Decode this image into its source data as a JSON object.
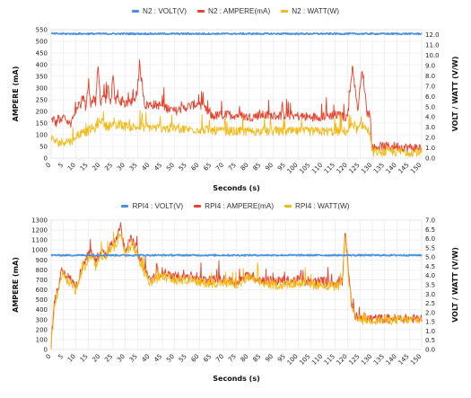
{
  "chart_data": [
    {
      "type": "line",
      "xlabel": "Seconds (s)",
      "ylabel_left": "AMPERE (mA)",
      "ylabel_right": "VOLT / WATT (V/W)",
      "xlim": [
        0,
        150
      ],
      "ylim_left": [
        0,
        550
      ],
      "ylim_right": [
        0,
        12.5
      ],
      "x_ticks": [
        0,
        5,
        10,
        15,
        20,
        25,
        30,
        35,
        40,
        45,
        50,
        55,
        60,
        65,
        70,
        75,
        80,
        85,
        90,
        95,
        100,
        105,
        110,
        115,
        120,
        125,
        130,
        135,
        140,
        145,
        150
      ],
      "y_ticks_left": [
        0,
        50,
        100,
        150,
        200,
        250,
        300,
        350,
        400,
        450,
        500,
        550
      ],
      "y_ticks_right": [
        "0.0",
        "1.0",
        "2.0",
        "3.0",
        "4.0",
        "5.0",
        "6.0",
        "7.0",
        "8.0",
        "9.0",
        "10.0",
        "11.0",
        "12.0"
      ],
      "legend_position": "top",
      "grid": true,
      "series": [
        {
          "name": "N2 : VOLT(V)",
          "axis": "right",
          "color": "#4a90e2",
          "x": [
            0,
            150
          ],
          "values": [
            12.1,
            12.1
          ]
        },
        {
          "name": "N2 : AMPERE(mA)",
          "axis": "left",
          "color": "#e8402c",
          "x": [
            0,
            1,
            2,
            3,
            4,
            5,
            6,
            7,
            8,
            9,
            10,
            11,
            12,
            13,
            14,
            15,
            16,
            17,
            18,
            19,
            20,
            21,
            22,
            23,
            24,
            25,
            26,
            27,
            28,
            29,
            30,
            32,
            34,
            36,
            38,
            40,
            45,
            50,
            55,
            60,
            65,
            70,
            75,
            80,
            85,
            90,
            95,
            100,
            105,
            110,
            115,
            120,
            122,
            124,
            126,
            128,
            129,
            130,
            132,
            135,
            140,
            145,
            150
          ],
          "values": [
            160,
            170,
            145,
            175,
            150,
            180,
            165,
            150,
            150,
            175,
            200,
            230,
            220,
            270,
            215,
            310,
            230,
            260,
            240,
            390,
            240,
            270,
            250,
            300,
            220,
            350,
            235,
            280,
            230,
            260,
            225,
            245,
            235,
            380,
            225,
            230,
            225,
            200,
            220,
            235,
            180,
            185,
            185,
            175,
            185,
            180,
            185,
            180,
            175,
            180,
            185,
            175,
            400,
            200,
            380,
            190,
            195,
            40,
            50,
            50,
            50,
            45,
            45
          ]
        },
        {
          "name": "N2 : WATT(W)",
          "axis": "right",
          "color": "#f5b915",
          "x": [
            0,
            2,
            4,
            6,
            8,
            10,
            12,
            14,
            16,
            18,
            20,
            22,
            24,
            26,
            28,
            30,
            35,
            40,
            45,
            50,
            55,
            60,
            65,
            70,
            80,
            90,
            100,
            110,
            120,
            122,
            124,
            126,
            128,
            129,
            130,
            135,
            140,
            145,
            150
          ],
          "values": [
            1.9,
            1.6,
            1.5,
            1.7,
            1.6,
            2.2,
            2.4,
            2.5,
            2.8,
            2.9,
            3.8,
            3.1,
            3.2,
            3.0,
            3.3,
            3.1,
            3.0,
            3.0,
            2.9,
            2.9,
            2.8,
            2.8,
            2.7,
            2.6,
            2.6,
            2.6,
            2.6,
            2.6,
            2.6,
            3.5,
            2.7,
            3.3,
            2.7,
            2.6,
            0.6,
            0.6,
            0.6,
            0.6,
            0.6
          ]
        }
      ]
    },
    {
      "type": "line",
      "xlabel": "Seconds (s)",
      "ylabel_left": "AMPERE (mA)",
      "ylabel_right": "VOLT / WATT (V/W)",
      "xlim": [
        0,
        150
      ],
      "ylim_left": [
        0,
        1300
      ],
      "ylim_right": [
        0,
        7.0
      ],
      "x_ticks": [
        0,
        5,
        10,
        15,
        20,
        25,
        30,
        35,
        40,
        45,
        50,
        55,
        60,
        65,
        70,
        75,
        80,
        85,
        90,
        95,
        100,
        105,
        110,
        115,
        120,
        125,
        130,
        135,
        140,
        145,
        150
      ],
      "y_ticks_left": [
        0,
        100,
        200,
        300,
        400,
        500,
        600,
        700,
        800,
        900,
        1000,
        1100,
        1200,
        1300
      ],
      "y_ticks_right": [
        "0.0",
        "0.5",
        "1.0",
        "1.5",
        "2.0",
        "2.5",
        "3.0",
        "3.5",
        "4.0",
        "4.5",
        "5.0",
        "5.5",
        "6.0",
        "6.5",
        "7.0"
      ],
      "legend_position": "top",
      "grid": true,
      "series": [
        {
          "name": "RPI4 : VOLT(V)",
          "axis": "right",
          "color": "#4a90e2",
          "x": [
            0,
            150
          ],
          "values": [
            5.1,
            5.1
          ]
        },
        {
          "name": "RPI4 : AMPERE(mA)",
          "axis": "left",
          "color": "#e8402c",
          "x": [
            0,
            1,
            2,
            3,
            4,
            5,
            6,
            8,
            10,
            12,
            14,
            16,
            18,
            20,
            22,
            24,
            26,
            28,
            30,
            32,
            34,
            36,
            38,
            40,
            45,
            50,
            55,
            60,
            65,
            70,
            75,
            80,
            85,
            90,
            95,
            100,
            105,
            110,
            115,
            118,
            119,
            120,
            121,
            122,
            123,
            125,
            130,
            140,
            150
          ],
          "values": [
            30,
            400,
            550,
            600,
            780,
            800,
            750,
            700,
            620,
            780,
            900,
            1000,
            880,
            1000,
            950,
            1050,
            1100,
            1250,
            1000,
            1100,
            1050,
            900,
            800,
            700,
            780,
            720,
            740,
            700,
            700,
            700,
            680,
            750,
            700,
            690,
            690,
            700,
            680,
            690,
            660,
            680,
            1200,
            900,
            600,
            400,
            330,
            320,
            310,
            310,
            310
          ]
        },
        {
          "name": "RPI4 : WATT(W)",
          "axis": "right",
          "color": "#f5b915",
          "x": [
            0,
            1,
            2,
            3,
            4,
            5,
            6,
            8,
            10,
            12,
            14,
            16,
            18,
            20,
            22,
            24,
            26,
            28,
            30,
            32,
            34,
            36,
            38,
            40,
            45,
            50,
            55,
            60,
            65,
            70,
            75,
            80,
            85,
            90,
            95,
            100,
            105,
            110,
            115,
            118,
            119,
            120,
            121,
            122,
            123,
            125,
            130,
            140,
            150
          ],
          "values": [
            0.1,
            2.0,
            2.8,
            3.1,
            4.0,
            4.1,
            3.8,
            3.6,
            3.2,
            4.0,
            4.6,
            5.2,
            4.5,
            5.2,
            4.9,
            5.4,
            5.6,
            6.4,
            5.1,
            5.6,
            5.4,
            4.6,
            4.1,
            3.6,
            4.0,
            3.7,
            3.8,
            3.6,
            3.6,
            3.6,
            3.5,
            3.9,
            3.6,
            3.5,
            3.5,
            3.6,
            3.5,
            3.5,
            3.4,
            3.5,
            6.2,
            4.6,
            3.1,
            2.1,
            1.7,
            1.6,
            1.6,
            1.6,
            1.6
          ]
        }
      ]
    }
  ]
}
